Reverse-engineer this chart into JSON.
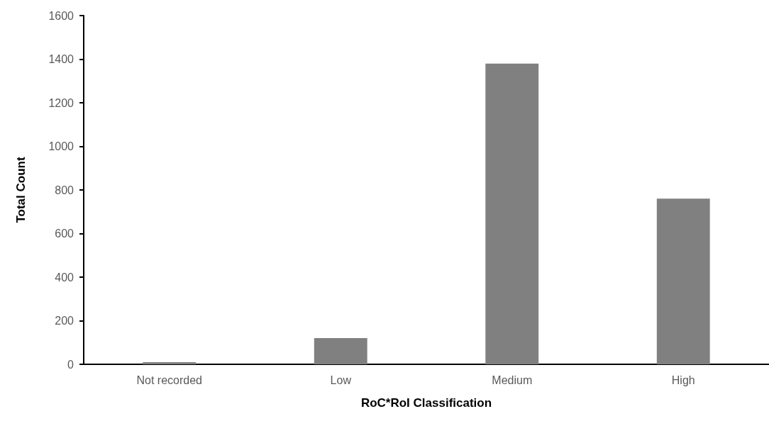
{
  "chart_data": {
    "type": "bar",
    "xlabel": "RoC*RoI Classification",
    "ylabel": "Total Count",
    "categories": [
      "Not recorded",
      "Low",
      "Medium",
      "High"
    ],
    "values": [
      10,
      120,
      1380,
      760
    ],
    "color": "#808080",
    "ylim": [
      0,
      1600
    ],
    "yticks": [
      0,
      200,
      400,
      600,
      800,
      1000,
      1200,
      1400,
      1600
    ],
    "grid": false
  }
}
